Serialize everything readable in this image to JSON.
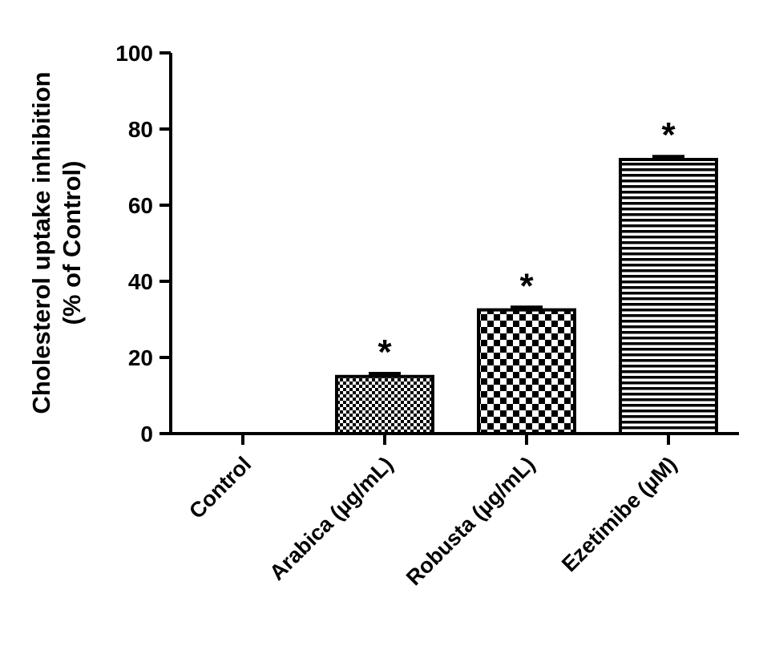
{
  "chart_data": {
    "type": "bar",
    "y_label": [
      "Cholesterol uptake inhibition",
      "(% of Control)"
    ],
    "categories": [
      "Control",
      "Arabica (µg/mL)",
      "Robusta (µg/mL)",
      "Ezetimibe (µM)"
    ],
    "values": [
      0,
      15,
      32.5,
      72
    ],
    "errors": [
      0,
      0.8,
      0.7,
      0.8
    ],
    "significance": [
      null,
      "*",
      "*",
      "*"
    ],
    "fill_patterns": [
      "none",
      "fine-check",
      "check",
      "hstripe"
    ],
    "color": "#000000",
    "ylim": [
      0,
      100
    ],
    "yticks": [
      0,
      20,
      40,
      60,
      80,
      100
    ],
    "grid": false
  }
}
